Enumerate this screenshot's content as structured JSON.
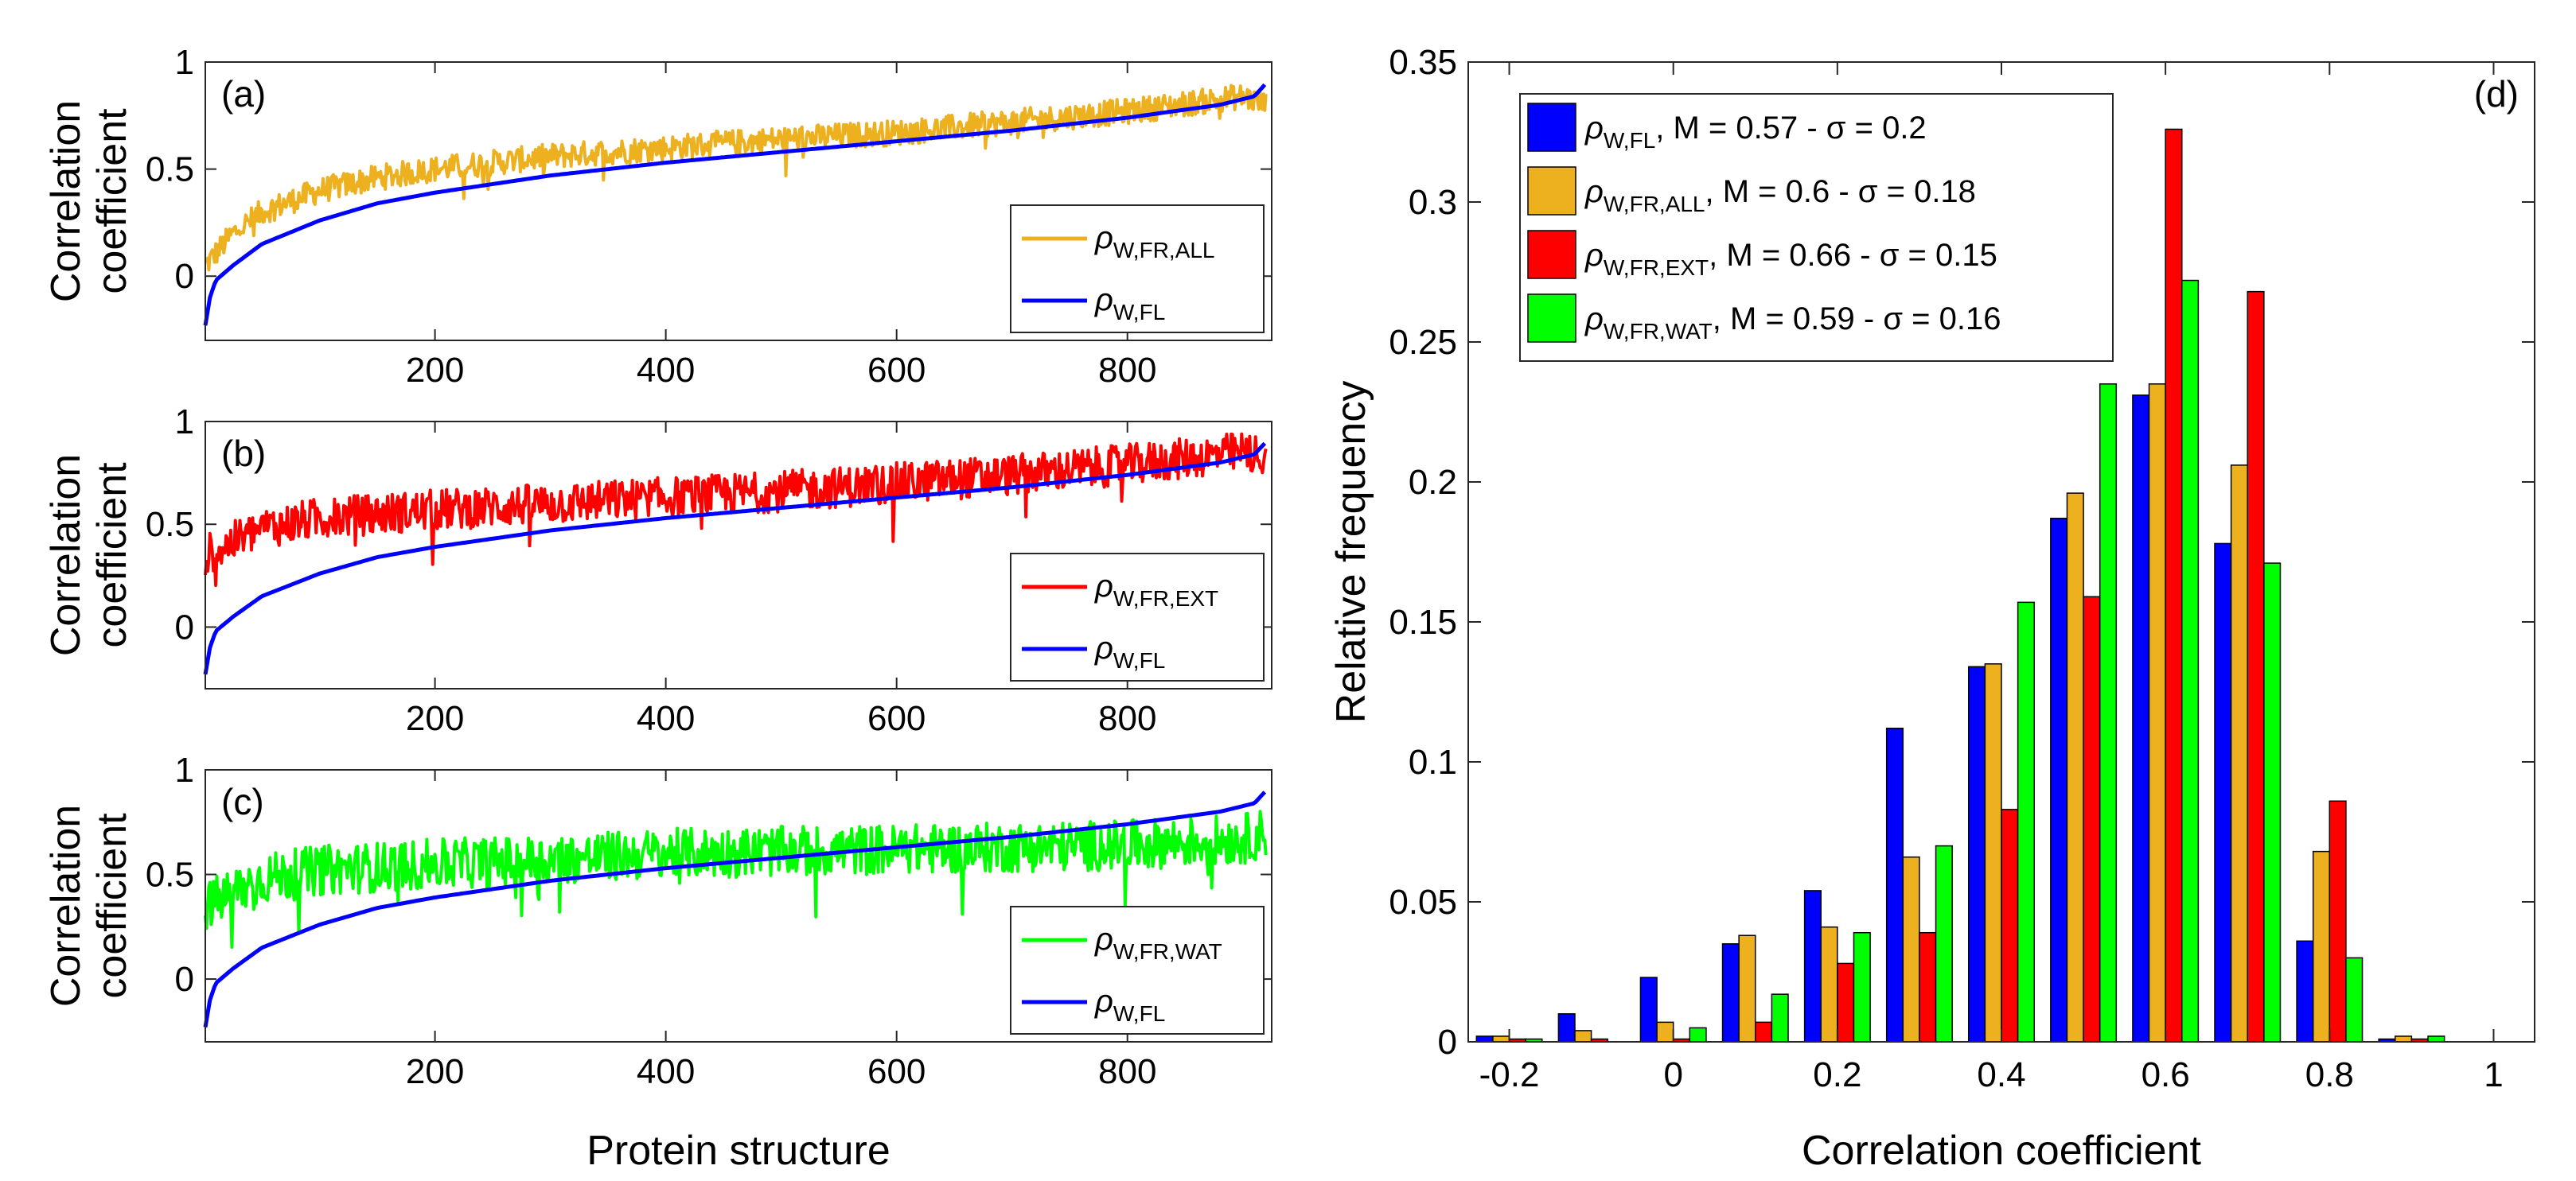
{
  "colors": {
    "fl": "#0000FF",
    "all": "#EDB120",
    "ext": "#FF0000",
    "wat": "#00FF00"
  },
  "chart_data": [
    {
      "type": "line",
      "panel": "(a)",
      "ylabel": [
        "Correlation",
        "coefficient"
      ],
      "xlabel": "",
      "xlim": [
        1,
        925
      ],
      "ylim": [
        -0.3,
        1.0
      ],
      "xticks": [
        200,
        400,
        600,
        800
      ],
      "yticks": [
        0,
        0.5,
        1
      ],
      "ytick_labels": [
        "0",
        "0.5",
        "1"
      ],
      "legend_position": "bottom-right",
      "series": [
        {
          "name_main": "ρ",
          "name_sub": "W,FR,ALL",
          "color_key": "all",
          "kind": "noisy",
          "x": [
            1,
            25,
            50,
            100,
            150,
            200,
            300,
            400,
            500,
            600,
            700,
            800,
            900,
            920
          ],
          "y": [
            0.05,
            0.2,
            0.3,
            0.4,
            0.46,
            0.5,
            0.56,
            0.6,
            0.64,
            0.67,
            0.72,
            0.77,
            0.84,
            0.8
          ],
          "noise": 0.06
        },
        {
          "name_main": "ρ",
          "name_sub": "W,FL",
          "color_key": "fl",
          "kind": "smooth",
          "x": [
            1,
            5,
            10,
            25,
            50,
            100,
            150,
            200,
            300,
            400,
            500,
            600,
            700,
            800,
            880,
            910,
            920
          ],
          "y": [
            -0.23,
            -0.1,
            -0.02,
            0.05,
            0.15,
            0.26,
            0.34,
            0.39,
            0.47,
            0.53,
            0.58,
            0.63,
            0.68,
            0.74,
            0.8,
            0.84,
            0.9
          ]
        }
      ]
    },
    {
      "type": "line",
      "panel": "(b)",
      "ylabel": [
        "Correlation",
        "coefficient"
      ],
      "xlabel": "",
      "xlim": [
        1,
        925
      ],
      "ylim": [
        -0.3,
        1.0
      ],
      "xticks": [
        200,
        400,
        600,
        800
      ],
      "yticks": [
        0,
        0.5,
        1
      ],
      "ytick_labels": [
        "0",
        "0.5",
        "1"
      ],
      "legend_position": "bottom-right",
      "series": [
        {
          "name_main": "ρ",
          "name_sub": "W,FR,EXT",
          "color_key": "ext",
          "kind": "noisy",
          "x": [
            1,
            50,
            100,
            200,
            300,
            400,
            500,
            600,
            700,
            800,
            900,
            920
          ],
          "y": [
            0.35,
            0.48,
            0.53,
            0.57,
            0.6,
            0.63,
            0.66,
            0.7,
            0.74,
            0.79,
            0.85,
            0.83
          ],
          "noise": 0.1
        },
        {
          "name_main": "ρ",
          "name_sub": "W,FL",
          "color_key": "fl",
          "kind": "smooth",
          "x": [
            1,
            5,
            10,
            25,
            50,
            100,
            150,
            200,
            300,
            400,
            500,
            600,
            700,
            800,
            880,
            910,
            920
          ],
          "y": [
            -0.23,
            -0.1,
            -0.02,
            0.05,
            0.15,
            0.26,
            0.34,
            0.39,
            0.47,
            0.53,
            0.58,
            0.63,
            0.68,
            0.74,
            0.8,
            0.84,
            0.9
          ]
        }
      ]
    },
    {
      "type": "line",
      "panel": "(c)",
      "ylabel": [
        "Correlation",
        "coefficient"
      ],
      "xlabel": "Protein structure",
      "xlim": [
        1,
        925
      ],
      "ylim": [
        -0.3,
        1.0
      ],
      "xticks": [
        200,
        400,
        600,
        800
      ],
      "yticks": [
        0,
        0.5,
        1
      ],
      "ytick_labels": [
        "0",
        "0.5",
        "1"
      ],
      "legend_position": "bottom-right",
      "series": [
        {
          "name_main": "ρ",
          "name_sub": "W,FR,WAT",
          "color_key": "wat",
          "kind": "noisy",
          "x": [
            1,
            50,
            100,
            200,
            300,
            400,
            500,
            600,
            700,
            800,
            900,
            920
          ],
          "y": [
            0.35,
            0.48,
            0.52,
            0.55,
            0.57,
            0.6,
            0.61,
            0.62,
            0.63,
            0.64,
            0.67,
            0.7
          ],
          "noise": 0.12
        },
        {
          "name_main": "ρ",
          "name_sub": "W,FL",
          "color_key": "fl",
          "kind": "smooth",
          "x": [
            1,
            5,
            10,
            25,
            50,
            100,
            150,
            200,
            300,
            400,
            500,
            600,
            700,
            800,
            880,
            910,
            920
          ],
          "y": [
            -0.23,
            -0.1,
            -0.02,
            0.05,
            0.15,
            0.26,
            0.34,
            0.39,
            0.47,
            0.53,
            0.58,
            0.63,
            0.68,
            0.74,
            0.8,
            0.84,
            0.9
          ]
        }
      ]
    },
    {
      "type": "bar",
      "panel": "(d)",
      "xlabel": "Correlation coefficient",
      "ylabel": "Relative frequency",
      "xlim": [
        -0.25,
        1.05
      ],
      "ylim": [
        0,
        0.35
      ],
      "xticks": [
        -0.2,
        0,
        0.2,
        0.4,
        0.6,
        0.8,
        1
      ],
      "xtick_labels": [
        "-0.2",
        "0",
        "0.2",
        "0.4",
        "0.6",
        "0.8",
        "1"
      ],
      "yticks": [
        0,
        0.05,
        0.1,
        0.15,
        0.2,
        0.25,
        0.3,
        0.35
      ],
      "ytick_labels": [
        "0",
        "0.05",
        "0.1",
        "0.15",
        "0.2",
        "0.25",
        "0.3",
        "0.35"
      ],
      "legend_position": "top-left",
      "bin_centers": [
        -0.2,
        -0.1,
        0,
        0.1,
        0.2,
        0.3,
        0.4,
        0.5,
        0.6,
        0.7,
        0.8,
        0.9
      ],
      "series": [
        {
          "name_main": "ρ",
          "name_sub": "W,FL",
          "stats": ", M = 0.57 - σ = 0.2",
          "color_key": "fl",
          "values": [
            0.002,
            0.01,
            0.023,
            0.035,
            0.054,
            0.112,
            0.134,
            0.187,
            0.231,
            0.178,
            0.036,
            0.001
          ]
        },
        {
          "name_main": "ρ",
          "name_sub": "W,FR,ALL",
          "stats": ", M = 0.6 - σ = 0.18",
          "color_key": "all",
          "values": [
            0.002,
            0.004,
            0.007,
            0.038,
            0.041,
            0.066,
            0.135,
            0.196,
            0.235,
            0.206,
            0.068,
            0.002
          ]
        },
        {
          "name_main": "ρ",
          "name_sub": "W,FR,EXT",
          "stats": ", M = 0.66 - σ = 0.15",
          "color_key": "ext",
          "values": [
            0.001,
            0.001,
            0.001,
            0.007,
            0.028,
            0.039,
            0.083,
            0.159,
            0.326,
            0.268,
            0.086,
            0.001
          ]
        },
        {
          "name_main": "ρ",
          "name_sub": "W,FR,WAT",
          "stats": ", M = 0.59 - σ = 0.16",
          "color_key": "wat",
          "values": [
            0.001,
            0.0,
            0.005,
            0.017,
            0.039,
            0.07,
            0.157,
            0.235,
            0.272,
            0.171,
            0.03,
            0.002
          ]
        }
      ]
    }
  ]
}
